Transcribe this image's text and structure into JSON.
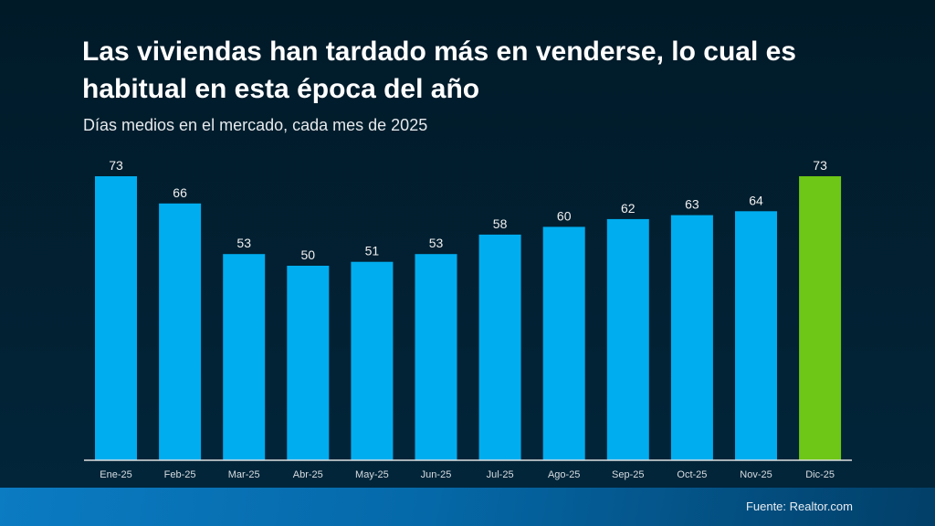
{
  "header": {
    "title": "Las viviendas han tardado más en venderse, lo cual es habitual en esta época del año",
    "subtitle": "Días medios en el mercado, cada mes de 2025"
  },
  "footer": {
    "source": "Fuente: Realtor.com"
  },
  "colors": {
    "bar_default": "#00adef",
    "bar_highlight": "#6ec616",
    "label_text": "#f0f0f0",
    "axis_line": "#e0e0e0"
  },
  "chart_data": {
    "type": "bar",
    "title": "Las viviendas han tardado más en venderse, lo cual es habitual en esta época del año",
    "subtitle": "Días medios en el mercado, cada mes de 2025",
    "xlabel": "",
    "ylabel": "",
    "categories": [
      "Ene-25",
      "Feb-25",
      "Mar-25",
      "Abr-25",
      "May-25",
      "Jun-25",
      "Jul-25",
      "Ago-25",
      "Sep-25",
      "Oct-25",
      "Nov-25",
      "Dic-25"
    ],
    "values": [
      73,
      66,
      53,
      50,
      51,
      53,
      58,
      60,
      62,
      63,
      64,
      73
    ],
    "highlight_index": 11,
    "ylim": [
      0,
      73
    ],
    "grid": false,
    "legend": "none",
    "data_labels": true
  }
}
